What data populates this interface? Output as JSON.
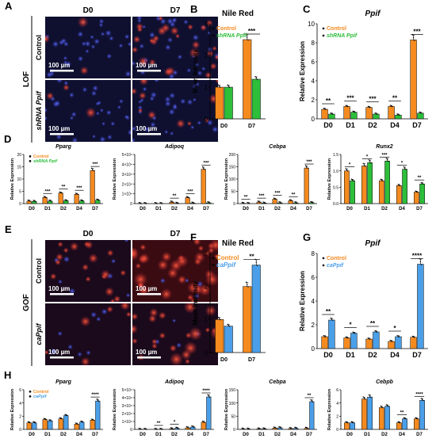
{
  "colors": {
    "orange": "#F58A1F",
    "green": "#2DBE3A",
    "blue": "#4A9FE8",
    "black": "#111111"
  },
  "panels": {
    "A": {
      "letter": "A",
      "columns": [
        "D0",
        "D7"
      ],
      "rows": [
        "Control",
        "shRNA Ppif"
      ],
      "group": "LOF",
      "scale": "100 µm"
    },
    "E": {
      "letter": "E",
      "columns": [
        "D0",
        "D7"
      ],
      "rows": [
        "Control",
        "caPpif"
      ],
      "group": "GOF",
      "scale": "100 µm"
    }
  },
  "chart_data": [
    {
      "id": "B",
      "letter": "B",
      "type": "bar",
      "title": "Nile Red",
      "ylabel": "Mean Intensity",
      "categories": [
        "D0",
        "D7"
      ],
      "ylim": [
        0,
        3
      ],
      "yticks": [
        0,
        1,
        2,
        3
      ],
      "series": [
        {
          "name": "Control",
          "color": "orange",
          "values": [
            1.0,
            2.5
          ]
        },
        {
          "name": "shRNA Ppif",
          "color": "green",
          "values": [
            1.0,
            1.25
          ]
        }
      ],
      "sig": [
        {
          "cat": 1,
          "label": "***"
        }
      ],
      "legend": [
        "Control",
        "shRNA Ppif"
      ]
    },
    {
      "id": "C",
      "letter": "C",
      "type": "bar",
      "title": "Ppif",
      "ylabel": "Relative Expression",
      "categories": [
        "D0",
        "D1",
        "D2",
        "D4",
        "D7"
      ],
      "ylim": [
        0,
        10
      ],
      "yticks": [
        0,
        2,
        4,
        6,
        8,
        10
      ],
      "series": [
        {
          "name": "Control",
          "color": "orange",
          "values": [
            1.0,
            1.3,
            1.2,
            1.3,
            8.3
          ]
        },
        {
          "name": "shRNA Ppif",
          "color": "green",
          "values": [
            0.5,
            0.7,
            0.5,
            0.4,
            0.6
          ]
        }
      ],
      "sig": [
        {
          "cat": 0,
          "label": "**"
        },
        {
          "cat": 1,
          "label": "***"
        },
        {
          "cat": 2,
          "label": "***"
        },
        {
          "cat": 3,
          "label": "**"
        },
        {
          "cat": 4,
          "label": "***"
        }
      ],
      "legend": [
        "Control",
        "shRNA Ppif"
      ]
    },
    {
      "id": "D1",
      "letter": "D",
      "type": "bar",
      "title": "Pparg",
      "ylabel": "Relative Expression",
      "categories": [
        "D0",
        "D1",
        "D2",
        "D4",
        "D7"
      ],
      "ylim": [
        0,
        20
      ],
      "yticks": [
        0,
        5,
        10,
        15,
        20
      ],
      "series": [
        {
          "name": "Control",
          "color": "orange",
          "values": [
            1.0,
            2.5,
            4.3,
            3.8,
            13.5
          ]
        },
        {
          "name": "shRNA Ppif",
          "color": "green",
          "values": [
            0.9,
            1.0,
            1.2,
            1.1,
            1.4
          ]
        }
      ],
      "sig": [
        {
          "cat": 1,
          "label": "***"
        },
        {
          "cat": 2,
          "label": "**"
        },
        {
          "cat": 3,
          "label": "***"
        },
        {
          "cat": 4,
          "label": "***"
        }
      ],
      "legend": [
        "Control",
        "shRNA Ppif"
      ]
    },
    {
      "id": "D2",
      "type": "bar",
      "title": "Adipoq",
      "ylabel": "Relative Expression",
      "categories": [
        "D0",
        "D1",
        "D2",
        "D4",
        "D7"
      ],
      "ylim": [
        0,
        50000
      ],
      "yticks": [
        0,
        10000,
        20000,
        30000,
        40000,
        50000
      ],
      "yticklabels": [
        "0",
        "1×10⁴",
        "2×10⁴",
        "3×10⁴",
        "4×10⁴",
        "5×10⁴"
      ],
      "series": [
        {
          "name": "Control",
          "color": "orange",
          "values": [
            1,
            1,
            1500,
            6000,
            35000
          ]
        },
        {
          "name": "shRNA Ppif",
          "color": "green",
          "values": [
            1,
            1,
            300,
            500,
            800
          ]
        }
      ],
      "sig": [
        {
          "cat": 2,
          "label": "**"
        },
        {
          "cat": 3,
          "label": "***"
        },
        {
          "cat": 4,
          "label": "***"
        }
      ]
    },
    {
      "id": "D3",
      "type": "bar",
      "title": "Cebpa",
      "ylabel": "Relative Expression",
      "categories": [
        "D0",
        "D1",
        "D2",
        "D4",
        "D7"
      ],
      "ylim": [
        0,
        200
      ],
      "yticks": [
        0,
        50,
        100,
        150,
        200
      ],
      "series": [
        {
          "name": "Control",
          "color": "orange",
          "values": [
            1,
            6,
            18,
            12,
            145
          ]
        },
        {
          "name": "shRNA Ppif",
          "color": "green",
          "values": [
            0.5,
            2,
            3,
            3,
            4
          ]
        }
      ],
      "sig": [
        {
          "cat": 0,
          "label": "**"
        },
        {
          "cat": 1,
          "label": "***"
        },
        {
          "cat": 2,
          "label": "***"
        },
        {
          "cat": 3,
          "label": "**"
        },
        {
          "cat": 4,
          "label": "***"
        }
      ]
    },
    {
      "id": "D4",
      "type": "bar",
      "title": "Runx2",
      "ylabel": "Relative Expression",
      "categories": [
        "D0",
        "D1",
        "D2",
        "D4",
        "D7"
      ],
      "ylim": [
        0,
        1.5
      ],
      "yticks": [
        0,
        0.5,
        1.0,
        1.5
      ],
      "yticklabels": [
        "0.0",
        "0.5",
        "1.0",
        "1.5"
      ],
      "series": [
        {
          "name": "Control",
          "color": "orange",
          "values": [
            1.0,
            1.15,
            0.7,
            0.55,
            0.35
          ]
        },
        {
          "name": "shRNA Ppif",
          "color": "green",
          "values": [
            0.7,
            1.25,
            1.3,
            1.05,
            0.6
          ]
        }
      ],
      "sig": [
        {
          "cat": 0,
          "label": "*"
        },
        {
          "cat": 1,
          "label": "*"
        },
        {
          "cat": 2,
          "label": "***"
        },
        {
          "cat": 3,
          "label": "*"
        },
        {
          "cat": 4,
          "label": "**"
        }
      ]
    },
    {
      "id": "F",
      "letter": "F",
      "type": "bar",
      "title": "Nile Red",
      "ylabel": "Mean Intensity",
      "categories": [
        "D0",
        "D7"
      ],
      "ylim": [
        0,
        3
      ],
      "yticks": [
        0,
        1,
        2,
        3
      ],
      "series": [
        {
          "name": "Control",
          "color": "orange",
          "values": [
            1.0,
            2.0
          ]
        },
        {
          "name": "caPpif",
          "color": "blue",
          "values": [
            0.8,
            2.65
          ]
        }
      ],
      "sig": [
        {
          "cat": 1,
          "label": "**"
        }
      ],
      "legend": [
        "Control",
        "caPpif"
      ]
    },
    {
      "id": "G",
      "letter": "G",
      "type": "bar",
      "title": "Ppif",
      "ylabel": "Relative Expression",
      "categories": [
        "D0",
        "D1",
        "D2",
        "D4",
        "D7"
      ],
      "ylim": [
        0,
        8
      ],
      "yticks": [
        0,
        2,
        4,
        6,
        8
      ],
      "series": [
        {
          "name": "Control",
          "color": "orange",
          "values": [
            1.0,
            0.9,
            0.8,
            0.6,
            0.95
          ]
        },
        {
          "name": "caPpif",
          "color": "blue",
          "values": [
            2.4,
            1.3,
            1.4,
            1.0,
            7.1
          ]
        }
      ],
      "sig": [
        {
          "cat": 0,
          "label": "**"
        },
        {
          "cat": 1,
          "label": "*"
        },
        {
          "cat": 2,
          "label": "**"
        },
        {
          "cat": 3,
          "label": "*"
        },
        {
          "cat": 4,
          "label": "****"
        }
      ],
      "legend": [
        "Control",
        "caPpif"
      ]
    },
    {
      "id": "H1",
      "letter": "H",
      "type": "bar",
      "title": "Pparg",
      "ylabel": "Relative Expression",
      "categories": [
        "D0",
        "D1",
        "D2",
        "D4",
        "D7"
      ],
      "ylim": [
        0,
        6
      ],
      "yticks": [
        0,
        2,
        4,
        6
      ],
      "series": [
        {
          "name": "Control",
          "color": "orange",
          "values": [
            1.0,
            1.5,
            1.6,
            0.8,
            1.4
          ]
        },
        {
          "name": "caPpif",
          "color": "blue",
          "values": [
            1.0,
            1.3,
            2.1,
            1.1,
            4.3
          ]
        }
      ],
      "sig": [
        {
          "cat": 4,
          "label": "****"
        }
      ],
      "legend": [
        "Control",
        "caPpif"
      ]
    },
    {
      "id": "H2",
      "type": "bar",
      "title": "Adipoq",
      "ylabel": "Relative Expression",
      "categories": [
        "D0",
        "D1",
        "D2",
        "D4",
        "D7"
      ],
      "ylim": [
        0,
        50000
      ],
      "yticks": [
        0,
        10000,
        20000,
        30000,
        40000,
        50000
      ],
      "yticklabels": [
        "0",
        "1×10⁴",
        "2×10⁴",
        "3×10⁴",
        "4×10⁴",
        "5×10⁴"
      ],
      "series": [
        {
          "name": "Control",
          "color": "orange",
          "values": [
            1,
            1,
            800,
            2000,
            9000
          ]
        },
        {
          "name": "caPpif",
          "color": "blue",
          "values": [
            1,
            1,
            1500,
            3000,
            41000
          ]
        }
      ],
      "sig": [
        {
          "cat": 1,
          "label": "**"
        },
        {
          "cat": 2,
          "label": "*"
        },
        {
          "cat": 4,
          "label": "****"
        }
      ]
    },
    {
      "id": "H3",
      "type": "bar",
      "title": "Cebpa",
      "ylabel": "Relative Expression",
      "categories": [
        "D0",
        "D1",
        "D2",
        "D4",
        "D7"
      ],
      "ylim": [
        0,
        150
      ],
      "yticks": [
        0,
        50,
        100,
        150
      ],
      "series": [
        {
          "name": "Control",
          "color": "orange",
          "values": [
            1,
            2,
            5,
            3,
            4
          ]
        },
        {
          "name": "caPpif",
          "color": "blue",
          "values": [
            1,
            2,
            6,
            4,
            105
          ]
        }
      ],
      "sig": [
        {
          "cat": 4,
          "label": "**"
        }
      ]
    },
    {
      "id": "H4",
      "type": "bar",
      "title": "Cebpb",
      "ylabel": "Relative Expression",
      "categories": [
        "D0",
        "D1",
        "D2",
        "D4",
        "D7"
      ],
      "ylim": [
        0,
        6
      ],
      "yticks": [
        0,
        2,
        4,
        6
      ],
      "series": [
        {
          "name": "Control",
          "color": "orange",
          "values": [
            1.0,
            4.6,
            3.3,
            1.0,
            1.6
          ]
        },
        {
          "name": "caPpif",
          "color": "blue",
          "values": [
            1.0,
            4.9,
            3.5,
            1.6,
            4.4
          ]
        }
      ],
      "sig": [
        {
          "cat": 3,
          "label": "**"
        },
        {
          "cat": 4,
          "label": "****"
        }
      ]
    }
  ]
}
